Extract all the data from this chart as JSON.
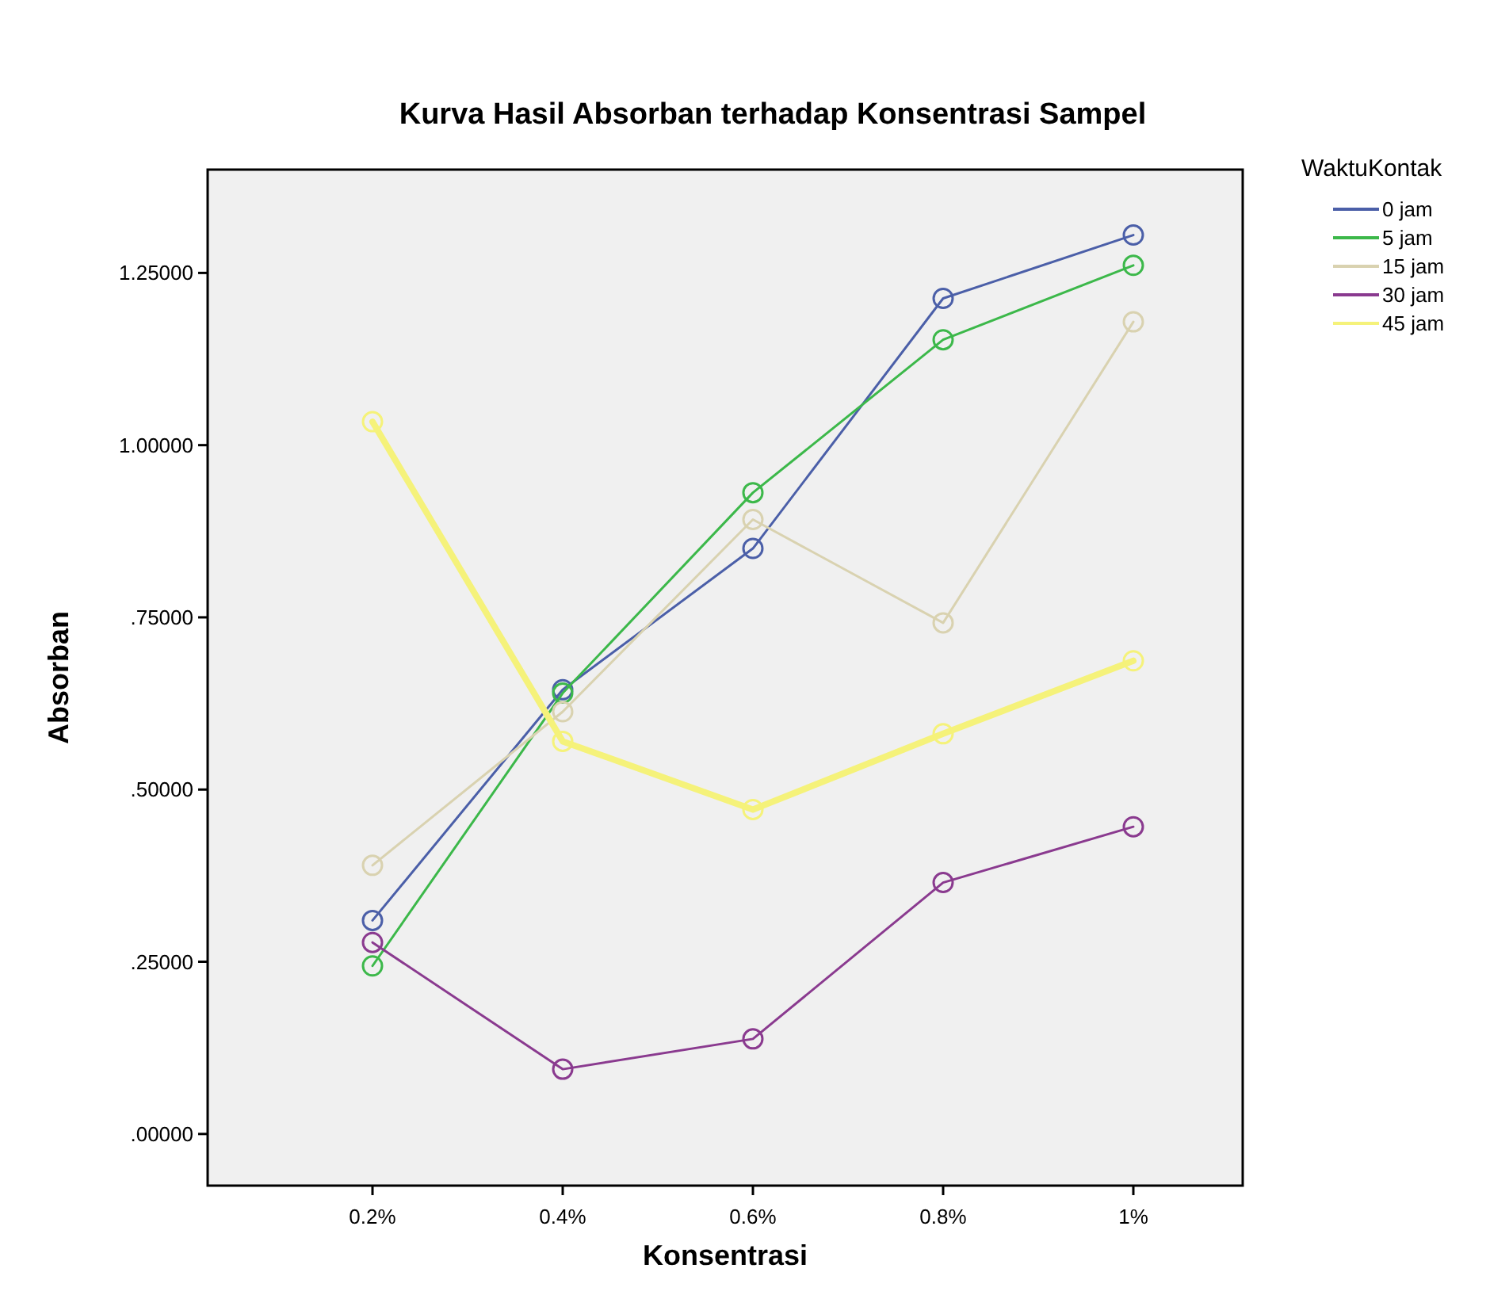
{
  "chart_data": {
    "type": "line",
    "title": "Kurva Hasil Absorban terhadap Konsentrasi Sampel",
    "xlabel": "Konsentrasi",
    "ylabel": "Absorban",
    "legend_title": "WaktuKontak",
    "categories": [
      "0.2%",
      "0.4%",
      "0.6%",
      "0.8%",
      "1%"
    ],
    "series": [
      {
        "name": "0 jam",
        "color": "#4b5fa8",
        "values": [
          0.31,
          0.645,
          0.85,
          1.213,
          1.305
        ]
      },
      {
        "name": "5 jam",
        "color": "#3cb84a",
        "values": [
          0.244,
          0.64,
          0.931,
          1.153,
          1.261
        ]
      },
      {
        "name": "15 jam",
        "color": "#d9d2b0",
        "values": [
          0.39,
          0.613,
          0.892,
          0.742,
          1.179
        ]
      },
      {
        "name": "30 jam",
        "color": "#8a3a8f",
        "values": [
          0.278,
          0.094,
          0.138,
          0.365,
          0.446
        ]
      },
      {
        "name": "45 jam",
        "color": "#f5f27a",
        "values": [
          1.034,
          0.57,
          0.471,
          0.581,
          0.687
        ]
      }
    ],
    "ylim": [
      -0.075,
      1.4
    ],
    "yticks": [
      {
        "value": 0,
        "label": ".00000"
      },
      {
        "value": 0.25,
        "label": ".25000"
      },
      {
        "value": 0.5,
        "label": ".50000"
      },
      {
        "value": 0.75,
        "label": ".75000"
      },
      {
        "value": 1,
        "label": "1.00000"
      },
      {
        "value": 1.25,
        "label": "1.25000"
      }
    ],
    "legend": "right",
    "marker": "circle",
    "grid": false
  }
}
